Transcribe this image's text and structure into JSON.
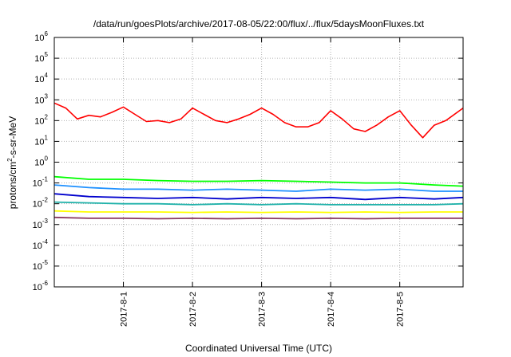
{
  "chart_data": {
    "type": "line",
    "title": "/data/run/goesPlots/archive/2017-08-05/22:00/flux/../flux/5daysMoonFluxes.txt",
    "xlabel": "Coordinated Universal Time (UTC)",
    "ylabel": "protons/cm²-s-sr-MeV",
    "x_start": "2017-07-31T00:00Z",
    "x_end": "2017-08-05T22:00Z",
    "xticks": [
      "2017-8-1",
      "2017-8-2",
      "2017-8-3",
      "2017-8-4",
      "2017-8-5"
    ],
    "ylim": [
      1e-06,
      1000000.0
    ],
    "yscale": "log",
    "ytick_exponents": [
      -6,
      -5,
      -4,
      -3,
      -2,
      -1,
      0,
      1,
      2,
      3,
      4,
      5,
      6
    ],
    "grid": true,
    "series": [
      {
        "color": "#ff0000",
        "x": [
          "2017-07-31T00:00Z",
          "2017-07-31T04:00Z",
          "2017-07-31T08:00Z",
          "2017-07-31T12:00Z",
          "2017-07-31T16:00Z",
          "2017-07-31T20:00Z",
          "2017-08-01T00:00Z",
          "2017-08-01T04:00Z",
          "2017-08-01T08:00Z",
          "2017-08-01T12:00Z",
          "2017-08-01T16:00Z",
          "2017-08-01T20:00Z",
          "2017-08-02T00:00Z",
          "2017-08-02T04:00Z",
          "2017-08-02T08:00Z",
          "2017-08-02T12:00Z",
          "2017-08-02T16:00Z",
          "2017-08-02T20:00Z",
          "2017-08-03T00:00Z",
          "2017-08-03T04:00Z",
          "2017-08-03T08:00Z",
          "2017-08-03T12:00Z",
          "2017-08-03T16:00Z",
          "2017-08-03T20:00Z",
          "2017-08-04T00:00Z",
          "2017-08-04T04:00Z",
          "2017-08-04T08:00Z",
          "2017-08-04T12:00Z",
          "2017-08-04T16:00Z",
          "2017-08-04T20:00Z",
          "2017-08-05T00:00Z",
          "2017-08-05T04:00Z",
          "2017-08-05T08:00Z",
          "2017-08-05T12:00Z",
          "2017-08-05T16:00Z",
          "2017-08-05T22:00Z"
        ],
        "y": [
          700,
          400,
          120,
          180,
          150,
          250,
          450,
          200,
          90,
          100,
          80,
          120,
          400,
          200,
          100,
          80,
          120,
          200,
          400,
          200,
          80,
          50,
          50,
          80,
          300,
          120,
          40,
          30,
          60,
          150,
          300,
          60,
          15,
          60,
          100,
          400
        ]
      },
      {
        "color": "#00ff00",
        "x": [
          "2017-07-31T00:00Z",
          "2017-07-31T12:00Z",
          "2017-08-01T00:00Z",
          "2017-08-01T12:00Z",
          "2017-08-02T00:00Z",
          "2017-08-02T12:00Z",
          "2017-08-03T00:00Z",
          "2017-08-03T12:00Z",
          "2017-08-04T00:00Z",
          "2017-08-04T12:00Z",
          "2017-08-05T00:00Z",
          "2017-08-05T12:00Z",
          "2017-08-05T22:00Z"
        ],
        "y": [
          0.2,
          0.15,
          0.15,
          0.13,
          0.12,
          0.12,
          0.13,
          0.12,
          0.11,
          0.1,
          0.1,
          0.08,
          0.07
        ]
      },
      {
        "color": "#1e90ff",
        "x": [
          "2017-07-31T00:00Z",
          "2017-07-31T12:00Z",
          "2017-08-01T00:00Z",
          "2017-08-01T12:00Z",
          "2017-08-02T00:00Z",
          "2017-08-02T12:00Z",
          "2017-08-03T00:00Z",
          "2017-08-03T12:00Z",
          "2017-08-04T00:00Z",
          "2017-08-04T12:00Z",
          "2017-08-05T00:00Z",
          "2017-08-05T12:00Z",
          "2017-08-05T22:00Z"
        ],
        "y": [
          0.08,
          0.06,
          0.05,
          0.05,
          0.045,
          0.05,
          0.045,
          0.04,
          0.05,
          0.045,
          0.05,
          0.04,
          0.04
        ]
      },
      {
        "color": "#0000cd",
        "x": [
          "2017-07-31T00:00Z",
          "2017-07-31T12:00Z",
          "2017-08-01T00:00Z",
          "2017-08-01T12:00Z",
          "2017-08-02T00:00Z",
          "2017-08-02T12:00Z",
          "2017-08-03T00:00Z",
          "2017-08-03T12:00Z",
          "2017-08-04T00:00Z",
          "2017-08-04T12:00Z",
          "2017-08-05T00:00Z",
          "2017-08-05T12:00Z",
          "2017-08-05T22:00Z"
        ],
        "y": [
          0.03,
          0.022,
          0.02,
          0.018,
          0.02,
          0.017,
          0.02,
          0.018,
          0.02,
          0.016,
          0.02,
          0.017,
          0.02
        ]
      },
      {
        "color": "#20b2aa",
        "x": [
          "2017-07-31T00:00Z",
          "2017-07-31T12:00Z",
          "2017-08-01T00:00Z",
          "2017-08-01T12:00Z",
          "2017-08-02T00:00Z",
          "2017-08-02T12:00Z",
          "2017-08-03T00:00Z",
          "2017-08-03T12:00Z",
          "2017-08-04T00:00Z",
          "2017-08-04T12:00Z",
          "2017-08-05T00:00Z",
          "2017-08-05T12:00Z",
          "2017-08-05T22:00Z"
        ],
        "y": [
          0.012,
          0.011,
          0.01,
          0.01,
          0.009,
          0.01,
          0.009,
          0.01,
          0.009,
          0.009,
          0.009,
          0.009,
          0.01
        ]
      },
      {
        "color": "#ffff00",
        "x": [
          "2017-07-31T00:00Z",
          "2017-07-31T12:00Z",
          "2017-08-01T00:00Z",
          "2017-08-01T12:00Z",
          "2017-08-02T00:00Z",
          "2017-08-02T12:00Z",
          "2017-08-03T00:00Z",
          "2017-08-03T12:00Z",
          "2017-08-04T00:00Z",
          "2017-08-04T12:00Z",
          "2017-08-05T00:00Z",
          "2017-08-05T12:00Z",
          "2017-08-05T22:00Z"
        ],
        "y": [
          0.0045,
          0.004,
          0.004,
          0.004,
          0.0038,
          0.004,
          0.0038,
          0.004,
          0.0038,
          0.004,
          0.0038,
          0.004,
          0.004
        ]
      },
      {
        "color": "#8b3a62",
        "x": [
          "2017-07-31T00:00Z",
          "2017-07-31T12:00Z",
          "2017-08-01T00:00Z",
          "2017-08-01T12:00Z",
          "2017-08-02T00:00Z",
          "2017-08-02T12:00Z",
          "2017-08-03T00:00Z",
          "2017-08-03T12:00Z",
          "2017-08-04T00:00Z",
          "2017-08-04T12:00Z",
          "2017-08-05T00:00Z",
          "2017-08-05T12:00Z",
          "2017-08-05T22:00Z"
        ],
        "y": [
          0.0022,
          0.002,
          0.002,
          0.0019,
          0.002,
          0.0019,
          0.002,
          0.0019,
          0.002,
          0.0019,
          0.002,
          0.002,
          0.002
        ]
      }
    ]
  }
}
